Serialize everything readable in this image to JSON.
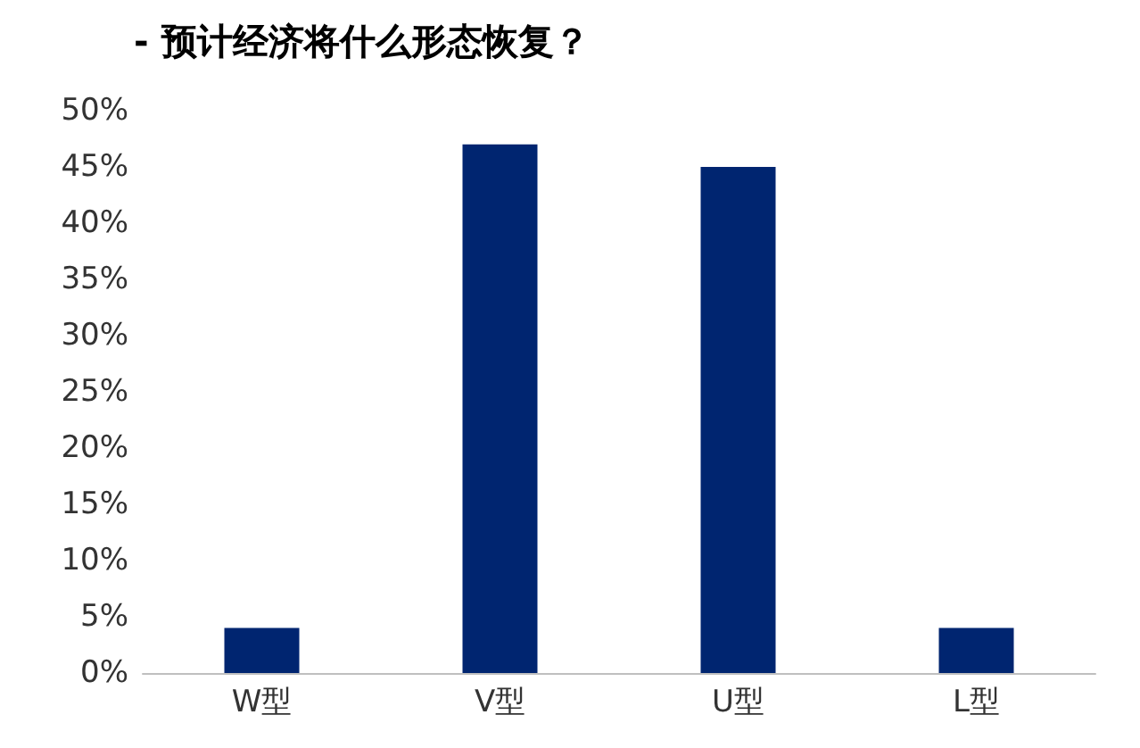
{
  "chart_data": {
    "type": "bar",
    "title": "- 预计经济将什么形态恢复？",
    "categories": [
      "W型",
      "V型",
      "U型",
      "L型"
    ],
    "values": [
      4,
      47,
      45,
      4
    ],
    "color": "#002570",
    "ylim": [
      0,
      50
    ],
    "yticks": [
      {
        "value": 0,
        "label": "0%"
      },
      {
        "value": 5,
        "label": "5%"
      },
      {
        "value": 10,
        "label": "10%"
      },
      {
        "value": 15,
        "label": "15%"
      },
      {
        "value": 20,
        "label": "20%"
      },
      {
        "value": 25,
        "label": "25%"
      },
      {
        "value": 30,
        "label": "30%"
      },
      {
        "value": 35,
        "label": "35%"
      },
      {
        "value": 40,
        "label": "40%"
      },
      {
        "value": 45,
        "label": "45%"
      },
      {
        "value": 50,
        "label": "50%"
      }
    ],
    "grid": false
  }
}
